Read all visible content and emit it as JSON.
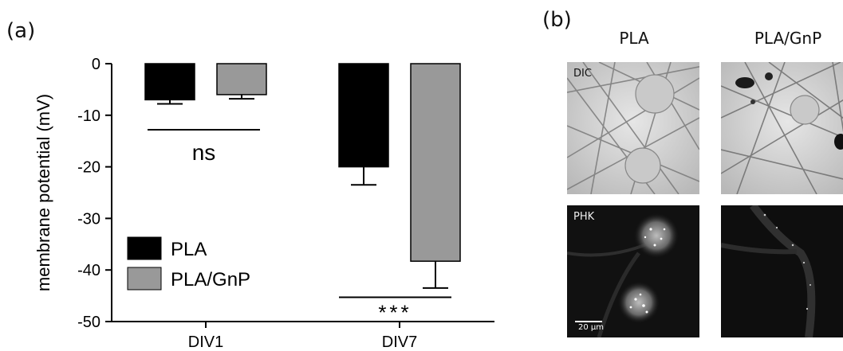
{
  "panel_a": {
    "label": "(a)"
  },
  "panel_b": {
    "label": "(b)",
    "columns": [
      "PLA",
      "PLA/GnP"
    ],
    "rows": [
      "DIC",
      "PHK"
    ],
    "scale_bar": "20 µm"
  },
  "colors": {
    "PLA": "#000000",
    "PLA/GnP": "#999999"
  },
  "chart_data": {
    "type": "bar",
    "title": "",
    "xlabel": "",
    "ylabel": "membrane potential (mV)",
    "categories": [
      "DIV1",
      "DIV7"
    ],
    "series": [
      {
        "name": "PLA",
        "values": [
          -7,
          -20
        ],
        "errors": [
          0.8,
          3.5
        ]
      },
      {
        "name": "PLA/GnP",
        "values": [
          -6,
          -38.3
        ],
        "errors": [
          0.8,
          5.2
        ]
      }
    ],
    "ylim": [
      -50,
      0
    ],
    "yticks": [
      0,
      -10,
      -20,
      -30,
      -40,
      -50
    ],
    "annotations": [
      {
        "category": "DIV1",
        "text": "ns"
      },
      {
        "category": "DIV7",
        "text": "***"
      }
    ],
    "legend": {
      "position": "lower-left",
      "entries": [
        "PLA",
        "PLA/GnP"
      ]
    }
  }
}
